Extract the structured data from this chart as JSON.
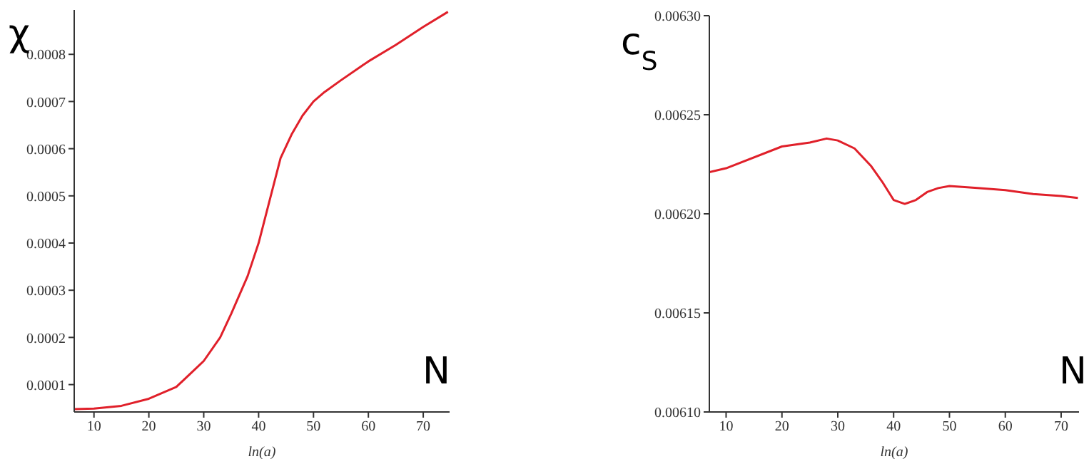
{
  "chart_data": [
    {
      "type": "line",
      "ylabel": "χ",
      "xlabel": "ln(a)",
      "annotations": [
        "N"
      ],
      "color": "#e0202a",
      "marker": "none",
      "x": [
        6.5,
        10,
        15,
        20,
        25,
        30,
        33,
        35,
        38,
        40,
        42,
        44,
        46,
        48,
        50,
        52,
        55,
        60,
        65,
        70,
        74.5
      ],
      "values": [
        4.8e-05,
        4.9e-05,
        5.5e-05,
        7e-05,
        9.5e-05,
        0.00015,
        0.0002,
        0.00025,
        0.00033,
        0.0004,
        0.00049,
        0.00058,
        0.00063,
        0.00067,
        0.0007,
        0.00072,
        0.000745,
        0.000785,
        0.00082,
        0.000858,
        0.00089
      ],
      "xlim": [
        6.4,
        74.8
      ],
      "xticks": [
        10,
        20,
        30,
        40,
        50,
        60,
        70
      ],
      "ylim": [
        4.2e-05,
        0.000894
      ],
      "yticks": [
        0.0001,
        0.0002,
        0.0003,
        0.0004,
        0.0005,
        0.0006,
        0.0007,
        0.0008
      ]
    },
    {
      "type": "line",
      "ylabel": "c$_{S}$",
      "xlabel": "ln(a)",
      "annotations": [
        "N"
      ],
      "color": "#e0202a",
      "marker": "none",
      "x": [
        7,
        10,
        20,
        25,
        28,
        30,
        33,
        36,
        38,
        40,
        42,
        44,
        46,
        48,
        50,
        55,
        60,
        65,
        70,
        73
      ],
      "values": [
        0.006221,
        0.006223,
        0.006234,
        0.006236,
        0.006238,
        0.006237,
        0.006233,
        0.006224,
        0.006216,
        0.006207,
        0.006205,
        0.006207,
        0.006211,
        0.006213,
        0.006214,
        0.006213,
        0.006212,
        0.00621,
        0.006209,
        0.006208
      ],
      "xlim": [
        7,
        73.2
      ],
      "xticks": [
        10,
        20,
        30,
        40,
        50,
        60,
        70
      ],
      "ylim": [
        0.0061,
        0.0063
      ],
      "yticks": [
        {
          "value": 0.0061,
          "label": "0.00610"
        },
        {
          "value": 0.00615,
          "label": "0.00615"
        },
        {
          "value": 0.0062,
          "label": "0.00620"
        },
        {
          "value": 0.00625,
          "label": "0.00625"
        },
        {
          "value": 0.0063,
          "label": "0.00630"
        }
      ]
    }
  ]
}
